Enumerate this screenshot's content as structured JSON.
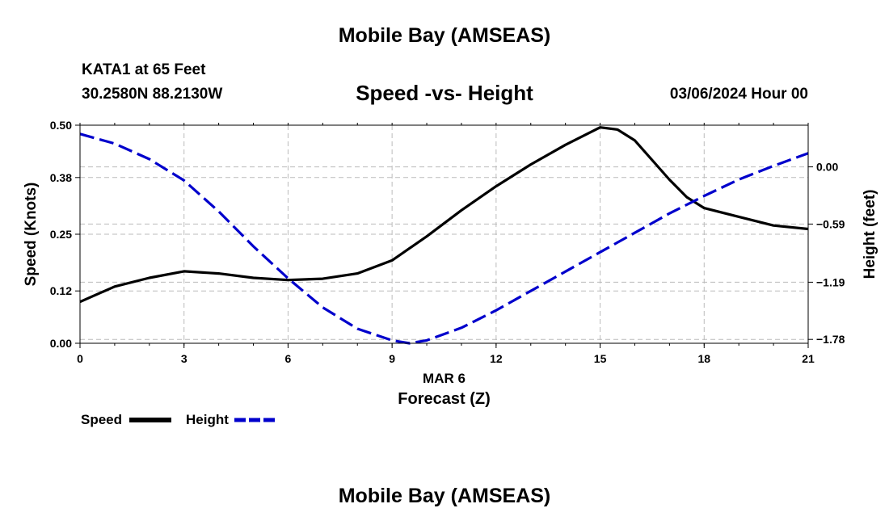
{
  "header": {
    "title": "Mobile Bay (AMSEAS)",
    "station": "KATA1 at 65 Feet",
    "coords": "30.2580N  88.2130W",
    "chart_title": "Speed -vs- Height",
    "datetime": "03/06/2024 Hour 00"
  },
  "footer": {
    "title": "Mobile Bay (AMSEAS)"
  },
  "legend": {
    "speed_label": "Speed",
    "height_label": "Height"
  },
  "colors": {
    "speed": "#000000",
    "height": "#0000cc",
    "grid": "#bbbbbb"
  },
  "chart_data": {
    "type": "line",
    "title": "Speed -vs- Height",
    "xlabel": "Forecast (Z)",
    "xlabel_date": "MAR 6",
    "ylabel": "Speed (Knots)",
    "y2label": "Height (feet)",
    "xlim": [
      0,
      21
    ],
    "ylim": [
      0,
      0.5
    ],
    "y2lim": [
      -1.82,
      0.43
    ],
    "x_ticks": [
      "0",
      "3",
      "6",
      "9",
      "12",
      "15",
      "18",
      "21"
    ],
    "y_ticks": [
      "0.00",
      "0.12",
      "0.25",
      "0.38",
      "0.50"
    ],
    "y2_ticks": [
      "0.00",
      "−0.59",
      "−1.19",
      "−1.78"
    ],
    "grid": true,
    "series": [
      {
        "name": "Speed",
        "axis": "left",
        "style": "solid",
        "x": [
          0,
          1,
          2,
          3,
          4,
          5,
          6,
          7,
          8,
          9,
          10,
          11,
          12,
          13,
          14,
          15,
          15.5,
          16,
          17,
          17.5,
          18,
          19,
          20,
          21
        ],
        "y": [
          0.095,
          0.13,
          0.15,
          0.165,
          0.16,
          0.15,
          0.145,
          0.148,
          0.16,
          0.19,
          0.245,
          0.305,
          0.36,
          0.41,
          0.455,
          0.495,
          0.49,
          0.465,
          0.375,
          0.335,
          0.31,
          0.29,
          0.27,
          0.262
        ]
      },
      {
        "name": "Height",
        "axis": "right",
        "style": "dashed",
        "x": [
          0,
          1,
          2,
          3,
          4,
          5,
          6,
          7,
          8,
          9,
          9.5,
          10,
          11,
          12,
          13,
          14,
          15,
          16,
          17,
          18,
          19,
          20,
          21
        ],
        "y": [
          0.34,
          0.24,
          0.08,
          -0.14,
          -0.46,
          -0.82,
          -1.15,
          -1.45,
          -1.67,
          -1.79,
          -1.82,
          -1.79,
          -1.66,
          -1.48,
          -1.28,
          -1.08,
          -0.88,
          -0.68,
          -0.48,
          -0.3,
          -0.13,
          0.01,
          0.14
        ]
      }
    ]
  }
}
